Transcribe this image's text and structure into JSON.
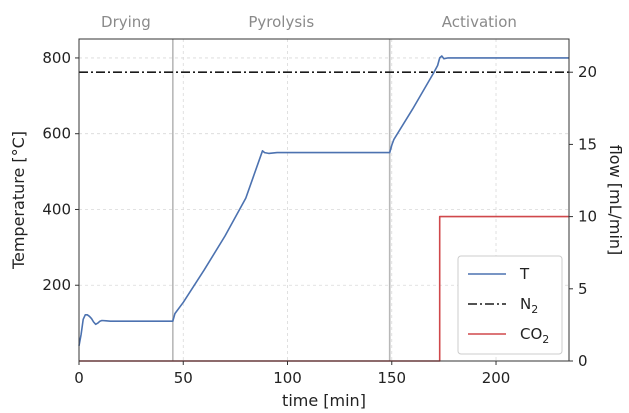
{
  "chart_data": {
    "type": "line",
    "phases": [
      {
        "label": "Drying",
        "x_start": 0,
        "x_end": 45
      },
      {
        "label": "Pyrolysis",
        "x_start": 45,
        "x_end": 149
      },
      {
        "label": "Activation",
        "x_start": 149,
        "x_end": 235
      }
    ],
    "phase_boundaries": [
      45,
      149
    ],
    "xlabel": "time [min]",
    "ylabel_left": "Temperature [°C]",
    "ylabel_right": "flow [mL/min]",
    "xlim": [
      0,
      235
    ],
    "ylim_left": [
      0,
      850
    ],
    "ylim_right": [
      0,
      22.3
    ],
    "xticks": [
      0,
      50,
      100,
      150,
      200
    ],
    "yticks_left": [
      200,
      400,
      600,
      800
    ],
    "yticks_right": [
      0,
      5,
      10,
      15,
      20
    ],
    "grid": true,
    "legend": {
      "placement": "lower-right",
      "entries": [
        {
          "label": "T",
          "sub": "",
          "color": "#4c72b0",
          "style": "solid"
        },
        {
          "label": "N",
          "sub": "2",
          "color": "#1a1a1a",
          "style": "dashdot"
        },
        {
          "label": "CO",
          "sub": "2",
          "color": "#d0484b",
          "style": "solid"
        }
      ]
    },
    "series": [
      {
        "name": "T",
        "axis": "left",
        "color": "#4c72b0",
        "style": "solid",
        "x": [
          0,
          1,
          2,
          3,
          4,
          5,
          6,
          7,
          8,
          9,
          10,
          11,
          13,
          15,
          20,
          30,
          44,
          45,
          46,
          50,
          60,
          70,
          80,
          88,
          89,
          91,
          95,
          149,
          150,
          151,
          160,
          170,
          172,
          173,
          174,
          175,
          177,
          180,
          235
        ],
        "y": [
          40,
          70,
          110,
          122,
          122,
          118,
          112,
          103,
          97,
          100,
          105,
          107,
          106,
          105,
          105,
          105,
          105,
          105,
          125,
          155,
          240,
          330,
          430,
          555,
          550,
          548,
          550,
          550,
          570,
          585,
          665,
          760,
          780,
          800,
          805,
          798,
          800,
          800,
          800
        ]
      },
      {
        "name": "N2",
        "axis": "right",
        "color": "#1a1a1a",
        "style": "dashdot",
        "x": [
          0,
          235
        ],
        "y": [
          20,
          20
        ]
      },
      {
        "name": "CO2",
        "axis": "right",
        "color": "#d0484b",
        "style": "solid",
        "x": [
          0,
          173,
          173,
          235
        ],
        "y": [
          0,
          0,
          10,
          10
        ]
      }
    ]
  }
}
